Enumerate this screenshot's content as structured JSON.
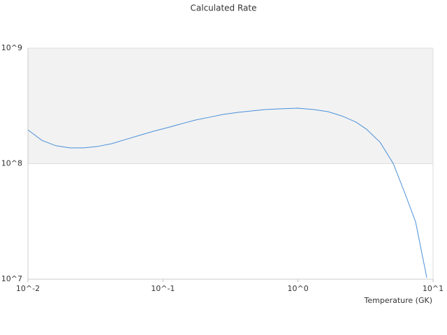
{
  "chart_data": {
    "type": "line",
    "title": "Calculated Rate",
    "x_label": "Temperature (GK)",
    "x_scale": "log",
    "y_scale": "log",
    "xlim": [
      0.01,
      10
    ],
    "ylim": [
      10000000,
      1000000000
    ],
    "xticks": [
      {
        "value": 0.01,
        "label": "10^-2"
      },
      {
        "value": 0.1,
        "label": "10^-1"
      },
      {
        "value": 1,
        "label": "10^0"
      },
      {
        "value": 10,
        "label": "10^1"
      }
    ],
    "yticks": [
      {
        "value": 10000000,
        "label": "10^7"
      },
      {
        "value": 100000000,
        "label": "10^8"
      },
      {
        "value": 1000000000,
        "label": "10^9"
      }
    ],
    "band_color": "#f2f2f2",
    "series": [
      {
        "color": "#4a90d9",
        "x": [
          0.01,
          0.0127,
          0.0161,
          0.0204,
          0.0259,
          0.0329,
          0.0417,
          0.0529,
          0.0672,
          0.0853,
          0.108,
          0.138,
          0.175,
          0.22,
          0.28,
          0.36,
          0.45,
          0.57,
          0.72,
          1.0,
          1.31,
          1.67,
          2.11,
          2.69,
          3.21,
          4.06,
          5.08,
          6.22,
          7.43,
          8.99
        ],
        "values": [
          196000000,
          159000000,
          143000000,
          137000000,
          137000000,
          141000000,
          149000000,
          162000000,
          176000000,
          191000000,
          205000000,
          222000000,
          239000000,
          252000000,
          267000000,
          278000000,
          286000000,
          294000000,
          298000000,
          302000000,
          294000000,
          282000000,
          259000000,
          229000000,
          199000000,
          153000000,
          100000000,
          54600000,
          31300000,
          10300000
        ]
      }
    ]
  }
}
